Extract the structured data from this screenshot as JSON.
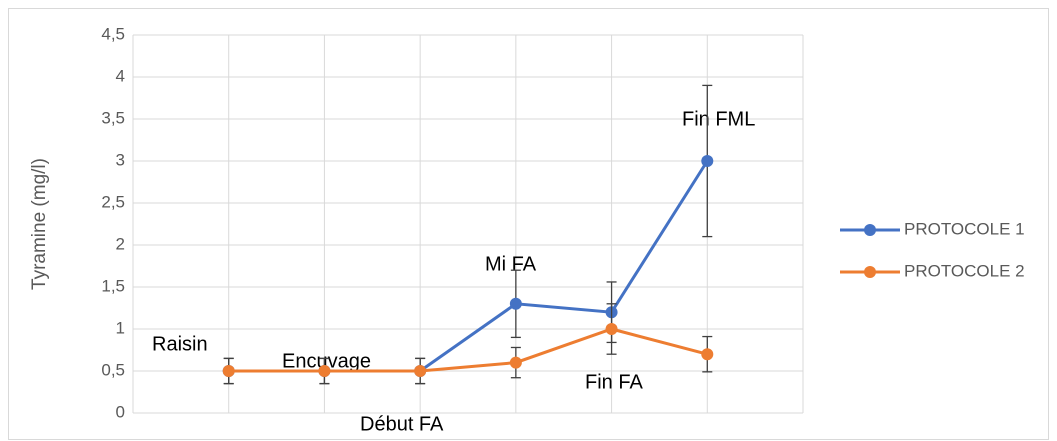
{
  "chart_data": {
    "type": "line",
    "y_label": "Tyramine (mg/l)",
    "categories": [
      null,
      null,
      null,
      null,
      null,
      null
    ],
    "annotations": [
      "Raisin",
      "Encuvage",
      "Début FA",
      "Mi FA",
      "Fin FA",
      "Fin FML"
    ],
    "series": [
      {
        "name": "PROTOCOLE 1",
        "color": "#4472c4",
        "values": [
          0.5,
          0.5,
          0.5,
          1.3,
          1.2,
          3.0
        ],
        "errors": [
          0.15,
          0.15,
          0.15,
          0.4,
          0.36,
          0.9
        ]
      },
      {
        "name": "PROTOCOLE 2",
        "color": "#ed7d31",
        "values": [
          0.5,
          0.5,
          0.5,
          0.6,
          1.0,
          0.7
        ],
        "errors": [
          0.15,
          0.15,
          0.15,
          0.18,
          0.3,
          0.21
        ]
      }
    ],
    "ylim": [
      0,
      4.5
    ],
    "yticks": [
      0,
      {
        "value": 0.5,
        "label": "0,5"
      },
      1,
      {
        "value": 1.5,
        "label": "1,5"
      },
      2,
      {
        "value": 2.5,
        "label": "2,5"
      },
      3,
      {
        "value": 3.5,
        "label": "3,5"
      },
      4,
      {
        "value": 4.5,
        "label": "4,5"
      }
    ],
    "grid": true,
    "legend": "right"
  }
}
